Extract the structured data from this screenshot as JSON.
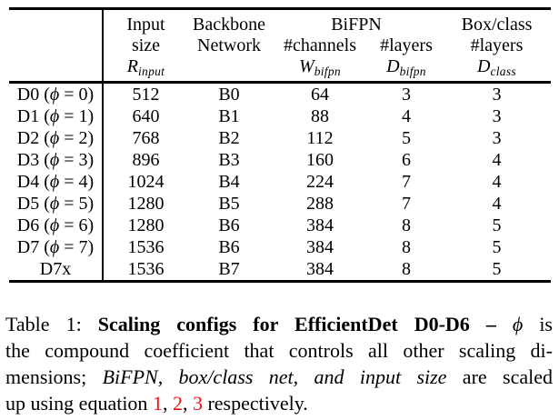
{
  "colors": {
    "background": "#ffffff",
    "text": "#000000",
    "rule": "#000000",
    "equation_link": "#f01010"
  },
  "table": {
    "header": {
      "input": {
        "l1": "Input",
        "l2": "size",
        "sym": "R",
        "sub": "input"
      },
      "backbone": {
        "l1": "Backbone",
        "l2": "Network"
      },
      "bifpn": {
        "l1": "BiFPN"
      },
      "channels": {
        "l2": "#channels",
        "sym": "W",
        "sub": "bifpn"
      },
      "layers": {
        "l2": "#layers",
        "sym": "D",
        "sub": "bifpn"
      },
      "boxclass": {
        "l1": "Box/class",
        "l2": "#layers",
        "sym": "D",
        "sub": "class"
      }
    },
    "rows": [
      {
        "label_pre": "D0 (",
        "phi": "ϕ",
        "label_post": " = 0)",
        "input_size": "512",
        "backbone": "B0",
        "channels": "64",
        "layers": "3",
        "box_layers": "3"
      },
      {
        "label_pre": "D1 (",
        "phi": "ϕ",
        "label_post": " = 1)",
        "input_size": "640",
        "backbone": "B1",
        "channels": "88",
        "layers": "4",
        "box_layers": "3"
      },
      {
        "label_pre": "D2 (",
        "phi": "ϕ",
        "label_post": " = 2)",
        "input_size": "768",
        "backbone": "B2",
        "channels": "112",
        "layers": "5",
        "box_layers": "3"
      },
      {
        "label_pre": "D3 (",
        "phi": "ϕ",
        "label_post": " = 3)",
        "input_size": "896",
        "backbone": "B3",
        "channels": "160",
        "layers": "6",
        "box_layers": "4"
      },
      {
        "label_pre": "D4 (",
        "phi": "ϕ",
        "label_post": " = 4)",
        "input_size": "1024",
        "backbone": "B4",
        "channels": "224",
        "layers": "7",
        "box_layers": "4"
      },
      {
        "label_pre": "D5 (",
        "phi": "ϕ",
        "label_post": " = 5)",
        "input_size": "1280",
        "backbone": "B5",
        "channels": "288",
        "layers": "7",
        "box_layers": "4"
      },
      {
        "label_pre": "D6 (",
        "phi": "ϕ",
        "label_post": " = 6)",
        "input_size": "1280",
        "backbone": "B6",
        "channels": "384",
        "layers": "8",
        "box_layers": "5"
      },
      {
        "label_pre": "D7 (",
        "phi": "ϕ",
        "label_post": " = 7)",
        "input_size": "1536",
        "backbone": "B6",
        "channels": "384",
        "layers": "8",
        "box_layers": "5"
      },
      {
        "label_pre": "D7x",
        "phi": "",
        "label_post": "",
        "input_size": "1536",
        "backbone": "B7",
        "channels": "384",
        "layers": "8",
        "box_layers": "5"
      }
    ]
  },
  "caption": {
    "lines": [
      [
        {
          "t": "Table 1: ",
          "s": "r"
        },
        {
          "t": "Scaling configs for EfficientDet D0-D6 – ",
          "s": "b"
        },
        {
          "t": "ϕ",
          "s": "i"
        },
        {
          "t": " is",
          "s": "r"
        }
      ],
      [
        {
          "t": "the compound coefficient that controls all other scaling di-",
          "s": "r"
        }
      ],
      [
        {
          "t": "mensions; ",
          "s": "r"
        },
        {
          "t": "BiFPN, box/class net, and input size",
          "s": "i"
        },
        {
          "t": " are scaled",
          "s": "r"
        }
      ],
      [
        {
          "t": "up using equation ",
          "s": "r"
        },
        {
          "t": "1",
          "s": "red"
        },
        {
          "t": ", ",
          "s": "r"
        },
        {
          "t": "2",
          "s": "red"
        },
        {
          "t": ", ",
          "s": "r"
        },
        {
          "t": "3",
          "s": "red"
        },
        {
          "t": " respectively.",
          "s": "r"
        }
      ]
    ]
  }
}
